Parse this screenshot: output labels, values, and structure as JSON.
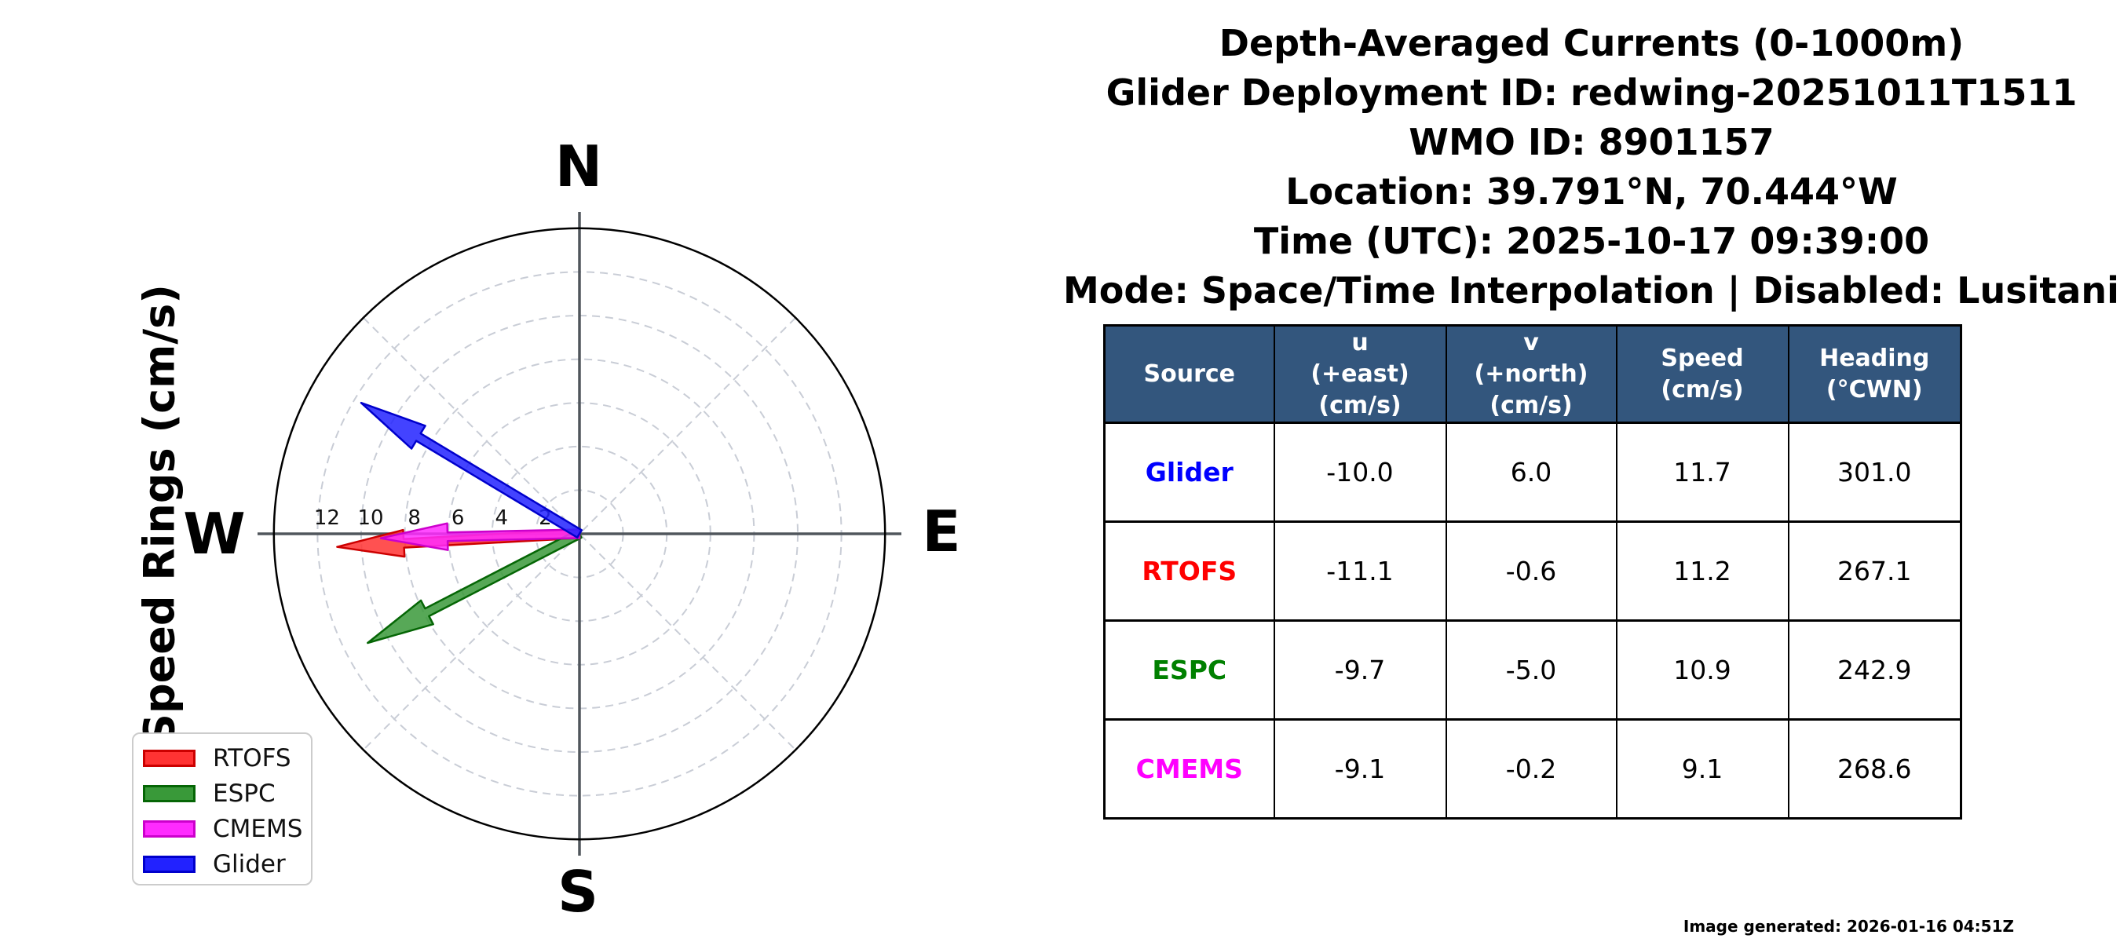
{
  "title_lines": [
    "Depth-Averaged Currents (0-1000m)",
    "Glider Deployment ID: redwing-20251011T1511",
    "WMO ID: 8901157",
    "Location: 39.791°N, 70.444°W",
    "Time (UTC): 2025-10-17 09:39:00",
    "Mode: Space/Time Interpolation | Disabled: Lusitania"
  ],
  "compass": {
    "north": "N",
    "east": "E",
    "south": "S",
    "west": "W"
  },
  "polar_axis_label": "Speed Rings (cm/s)",
  "chart_data": {
    "type": "vector-polar",
    "title": "Depth-Averaged Currents (0-1000m)",
    "units": "cm/s",
    "ring_step": 2,
    "ring_max": 12,
    "outer_radius_units": 14,
    "ring_tick_labels": [
      "12",
      "10",
      "8",
      "6",
      "4",
      "2"
    ],
    "series": [
      {
        "name": "RTOFS",
        "u": -11.1,
        "v": -0.6,
        "speed": 11.2,
        "heading_cwn": 267.1,
        "color": "#ff3333",
        "edge": "#cc0000"
      },
      {
        "name": "ESPC",
        "u": -9.7,
        "v": -5.0,
        "speed": 10.9,
        "heading_cwn": 242.9,
        "color": "#399939",
        "edge": "#056605"
      },
      {
        "name": "CMEMS",
        "u": -9.1,
        "v": -0.2,
        "speed": 9.1,
        "heading_cwn": 268.6,
        "color": "#ff2bff",
        "edge": "#cc00cc"
      },
      {
        "name": "Glider",
        "u": -10.0,
        "v": 6.0,
        "speed": 11.7,
        "heading_cwn": 301.0,
        "color": "#2222ff",
        "edge": "#0000cc"
      }
    ]
  },
  "legend": {
    "items": [
      {
        "label": "RTOFS",
        "fill": "#ff3333",
        "edge": "#cc0000"
      },
      {
        "label": "ESPC",
        "fill": "#399939",
        "edge": "#056605"
      },
      {
        "label": "CMEMS",
        "fill": "#ff2bff",
        "edge": "#cc00cc"
      },
      {
        "label": "Glider",
        "fill": "#2222ff",
        "edge": "#0000cc"
      }
    ]
  },
  "table": {
    "headers": [
      "Source",
      "u\n(+east)\n(cm/s)",
      "v\n(+north)\n(cm/s)",
      "Speed\n(cm/s)",
      "Heading\n(°CWN)"
    ],
    "rows": [
      {
        "source": "Glider",
        "source_color": "#0000ff",
        "u": "-10.0",
        "v": "6.0",
        "speed": "11.7",
        "heading": "301.0"
      },
      {
        "source": "RTOFS",
        "source_color": "#ff0000",
        "u": "-11.1",
        "v": "-0.6",
        "speed": "11.2",
        "heading": "267.1"
      },
      {
        "source": "ESPC",
        "source_color": "#008000",
        "u": "-9.7",
        "v": "-5.0",
        "speed": "10.9",
        "heading": "242.9"
      },
      {
        "source": "CMEMS",
        "source_color": "#ff00ff",
        "u": "-9.1",
        "v": "-0.2",
        "speed": "9.1",
        "heading": "268.6"
      }
    ]
  },
  "footer": {
    "generated_note": "Image generated: 2026-01-16 04:51Z"
  },
  "colors": {
    "table_header_bg": "#33567d",
    "grid": "#c9cdd6",
    "axis_cross": "#50565c",
    "outer_circle": "#000000"
  }
}
